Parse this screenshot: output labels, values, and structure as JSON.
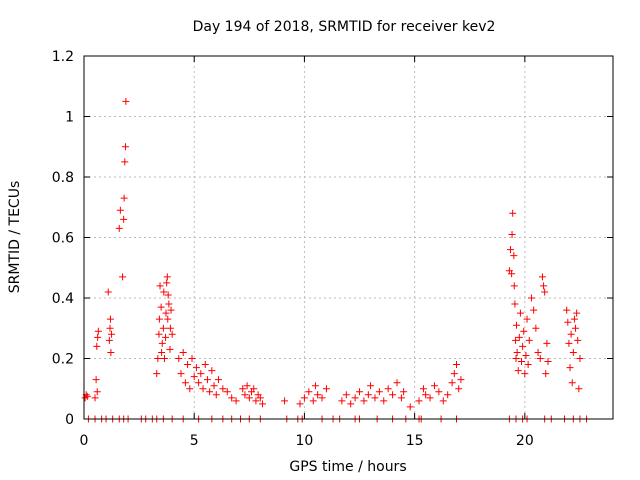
{
  "chart_data": {
    "type": "scatter",
    "title": "Day 194 of 2018, SRMTID for receiver kev2",
    "xlabel": "GPS time / hours",
    "ylabel": "SRMTID / TECUs",
    "xlim": [
      0,
      24
    ],
    "ylim": [
      0,
      1.2
    ],
    "xticks": [
      0,
      5,
      10,
      15,
      20
    ],
    "xtick_labels": [
      "0",
      "5",
      "10",
      "15",
      "20"
    ],
    "yticks": [
      0,
      0.2,
      0.4,
      0.6,
      0.8,
      1.0,
      1.2
    ],
    "ytick_labels": [
      "0",
      "0.2",
      "0.4",
      "0.6",
      "0.8",
      "1",
      "1.2"
    ],
    "grid": true,
    "marker": "+",
    "colors": {
      "points": "#ff0000",
      "grid": "#bbbbbb",
      "axes": "#000000"
    },
    "series": [
      {
        "name": "SRMTID",
        "points": [
          [
            0.05,
            0.07
          ],
          [
            0.1,
            0.08
          ],
          [
            0.15,
            0.075
          ],
          [
            0.5,
            0.07
          ],
          [
            0.55,
            0.13
          ],
          [
            0.6,
            0.09
          ],
          [
            0.58,
            0.24
          ],
          [
            0.62,
            0.27
          ],
          [
            0.65,
            0.29
          ],
          [
            1.1,
            0.42
          ],
          [
            1.15,
            0.26
          ],
          [
            1.18,
            0.3
          ],
          [
            1.2,
            0.33
          ],
          [
            1.22,
            0.22
          ],
          [
            1.25,
            0.28
          ],
          [
            1.6,
            0.63
          ],
          [
            1.65,
            0.69
          ],
          [
            1.75,
            0.47
          ],
          [
            1.8,
            0.66
          ],
          [
            1.82,
            0.73
          ],
          [
            1.85,
            0.85
          ],
          [
            1.88,
            0.9
          ],
          [
            1.9,
            1.05
          ],
          [
            3.3,
            0.15
          ],
          [
            3.35,
            0.2
          ],
          [
            3.4,
            0.28
          ],
          [
            3.42,
            0.33
          ],
          [
            3.45,
            0.44
          ],
          [
            3.5,
            0.37
          ],
          [
            3.52,
            0.22
          ],
          [
            3.55,
            0.25
          ],
          [
            3.6,
            0.3
          ],
          [
            3.62,
            0.42
          ],
          [
            3.65,
            0.2
          ],
          [
            3.7,
            0.27
          ],
          [
            3.72,
            0.35
          ],
          [
            3.75,
            0.45
          ],
          [
            3.78,
            0.47
          ],
          [
            3.8,
            0.33
          ],
          [
            3.82,
            0.41
          ],
          [
            3.85,
            0.38
          ],
          [
            3.9,
            0.23
          ],
          [
            3.92,
            0.3
          ],
          [
            3.95,
            0.36
          ],
          [
            4.0,
            0.28
          ],
          [
            4.3,
            0.2
          ],
          [
            4.4,
            0.15
          ],
          [
            4.5,
            0.22
          ],
          [
            4.6,
            0.12
          ],
          [
            4.7,
            0.18
          ],
          [
            4.8,
            0.1
          ],
          [
            4.9,
            0.2
          ],
          [
            5.0,
            0.14
          ],
          [
            5.1,
            0.17
          ],
          [
            5.2,
            0.12
          ],
          [
            5.3,
            0.15
          ],
          [
            5.4,
            0.1
          ],
          [
            5.5,
            0.18
          ],
          [
            5.6,
            0.13
          ],
          [
            5.7,
            0.09
          ],
          [
            5.8,
            0.16
          ],
          [
            5.9,
            0.11
          ],
          [
            6.0,
            0.08
          ],
          [
            6.1,
            0.13
          ],
          [
            6.3,
            0.1
          ],
          [
            6.5,
            0.09
          ],
          [
            6.7,
            0.07
          ],
          [
            6.9,
            0.06
          ],
          [
            7.2,
            0.1
          ],
          [
            7.3,
            0.08
          ],
          [
            7.4,
            0.11
          ],
          [
            7.5,
            0.07
          ],
          [
            7.6,
            0.09
          ],
          [
            7.7,
            0.1
          ],
          [
            7.8,
            0.06
          ],
          [
            7.9,
            0.08
          ],
          [
            8.0,
            0.07
          ],
          [
            8.1,
            0.05
          ],
          [
            9.1,
            0.06
          ],
          [
            9.8,
            0.05
          ],
          [
            10.0,
            0.07
          ],
          [
            10.2,
            0.09
          ],
          [
            10.4,
            0.06
          ],
          [
            10.5,
            0.11
          ],
          [
            10.6,
            0.08
          ],
          [
            10.8,
            0.07
          ],
          [
            11.0,
            0.1
          ],
          [
            11.7,
            0.06
          ],
          [
            11.9,
            0.08
          ],
          [
            12.1,
            0.05
          ],
          [
            12.3,
            0.07
          ],
          [
            12.5,
            0.09
          ],
          [
            12.7,
            0.06
          ],
          [
            12.9,
            0.08
          ],
          [
            13.0,
            0.11
          ],
          [
            13.2,
            0.07
          ],
          [
            13.4,
            0.09
          ],
          [
            13.6,
            0.06
          ],
          [
            13.8,
            0.1
          ],
          [
            14.0,
            0.08
          ],
          [
            14.2,
            0.12
          ],
          [
            14.4,
            0.07
          ],
          [
            14.5,
            0.09
          ],
          [
            14.8,
            0.04
          ],
          [
            15.2,
            0.06
          ],
          [
            15.4,
            0.1
          ],
          [
            15.5,
            0.08
          ],
          [
            15.7,
            0.07
          ],
          [
            15.9,
            0.11
          ],
          [
            16.1,
            0.09
          ],
          [
            16.3,
            0.06
          ],
          [
            16.5,
            0.08
          ],
          [
            16.7,
            0.12
          ],
          [
            16.8,
            0.15
          ],
          [
            16.9,
            0.18
          ],
          [
            17.0,
            0.1
          ],
          [
            17.1,
            0.13
          ],
          [
            19.3,
            0.49
          ],
          [
            19.35,
            0.56
          ],
          [
            19.4,
            0.48
          ],
          [
            19.42,
            0.61
          ],
          [
            19.45,
            0.68
          ],
          [
            19.5,
            0.54
          ],
          [
            19.52,
            0.44
          ],
          [
            19.55,
            0.38
          ],
          [
            19.58,
            0.26
          ],
          [
            19.6,
            0.2
          ],
          [
            19.62,
            0.31
          ],
          [
            19.65,
            0.22
          ],
          [
            19.7,
            0.16
          ],
          [
            19.75,
            0.27
          ],
          [
            19.8,
            0.35
          ],
          [
            19.85,
            0.19
          ],
          [
            19.9,
            0.24
          ],
          [
            19.95,
            0.29
          ],
          [
            20.0,
            0.15
          ],
          [
            20.05,
            0.21
          ],
          [
            20.1,
            0.33
          ],
          [
            20.15,
            0.18
          ],
          [
            20.2,
            0.26
          ],
          [
            20.3,
            0.4
          ],
          [
            20.4,
            0.36
          ],
          [
            20.5,
            0.3
          ],
          [
            20.6,
            0.22
          ],
          [
            20.7,
            0.2
          ],
          [
            20.8,
            0.47
          ],
          [
            20.85,
            0.44
          ],
          [
            20.9,
            0.42
          ],
          [
            20.95,
            0.15
          ],
          [
            21.0,
            0.25
          ],
          [
            21.05,
            0.19
          ],
          [
            21.9,
            0.36
          ],
          [
            21.95,
            0.32
          ],
          [
            22.0,
            0.25
          ],
          [
            22.05,
            0.17
          ],
          [
            22.1,
            0.28
          ],
          [
            22.15,
            0.12
          ],
          [
            22.2,
            0.22
          ],
          [
            22.25,
            0.33
          ],
          [
            22.3,
            0.3
          ],
          [
            22.35,
            0.35
          ],
          [
            22.4,
            0.26
          ],
          [
            22.45,
            0.1
          ],
          [
            22.5,
            0.2
          ]
        ],
        "zero_points_x": [
          0.2,
          0.5,
          0.8,
          1.0,
          1.3,
          1.6,
          1.8,
          2.0,
          2.6,
          2.8,
          3.1,
          3.3,
          3.6,
          4.0,
          4.5,
          5.2,
          5.8,
          6.3,
          6.7,
          7.1,
          7.5,
          8.0,
          9.2,
          9.7,
          9.9,
          10.8,
          11.3,
          11.6,
          12.3,
          12.5,
          13.3,
          14.0,
          14.6,
          15.2,
          15.3,
          16.2,
          16.9,
          19.3,
          19.6,
          19.9,
          20.1,
          20.9,
          21.2,
          21.8,
          22.2,
          22.5,
          22.8
        ]
      }
    ]
  }
}
